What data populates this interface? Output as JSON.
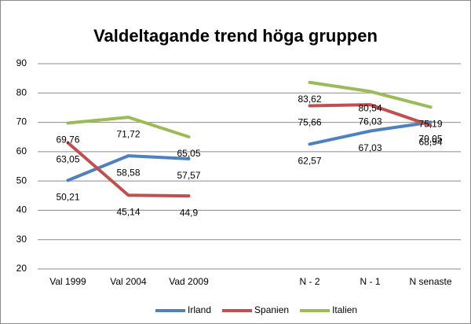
{
  "chart_data": {
    "type": "line",
    "title": "Valdeltagande trend höga gruppen",
    "categories": [
      "Val 1999",
      "Val 2004",
      "Vad 2009",
      null,
      "N - 2",
      "N - 1",
      "N senaste"
    ],
    "series": [
      {
        "name": "Irland",
        "color": "#4f81bd",
        "values": [
          50.21,
          58.58,
          57.57,
          null,
          62.57,
          67.03,
          70.05
        ],
        "value_labels": [
          "50,21",
          "58,58",
          "57,57",
          null,
          "62,57",
          "67,03",
          "70,05"
        ]
      },
      {
        "name": "Spanien",
        "color": "#c0504d",
        "values": [
          63.05,
          45.14,
          44.9,
          null,
          75.66,
          76.03,
          68.94
        ],
        "value_labels": [
          "63,05",
          "45,14",
          "44,9",
          null,
          "75,66",
          "76,03",
          "68,94"
        ]
      },
      {
        "name": "Italien",
        "color": "#9bbb59",
        "values": [
          69.76,
          71.72,
          65.05,
          null,
          83.62,
          80.54,
          75.19
        ],
        "value_labels": [
          "69,76",
          "71,72",
          "65,05",
          null,
          "83,62",
          "80,54",
          "75,19"
        ]
      }
    ],
    "ylim": [
      20,
      90
    ],
    "yticks": [
      20,
      30,
      40,
      50,
      60,
      70,
      80,
      90
    ],
    "grid": true,
    "legend": "bottom"
  }
}
